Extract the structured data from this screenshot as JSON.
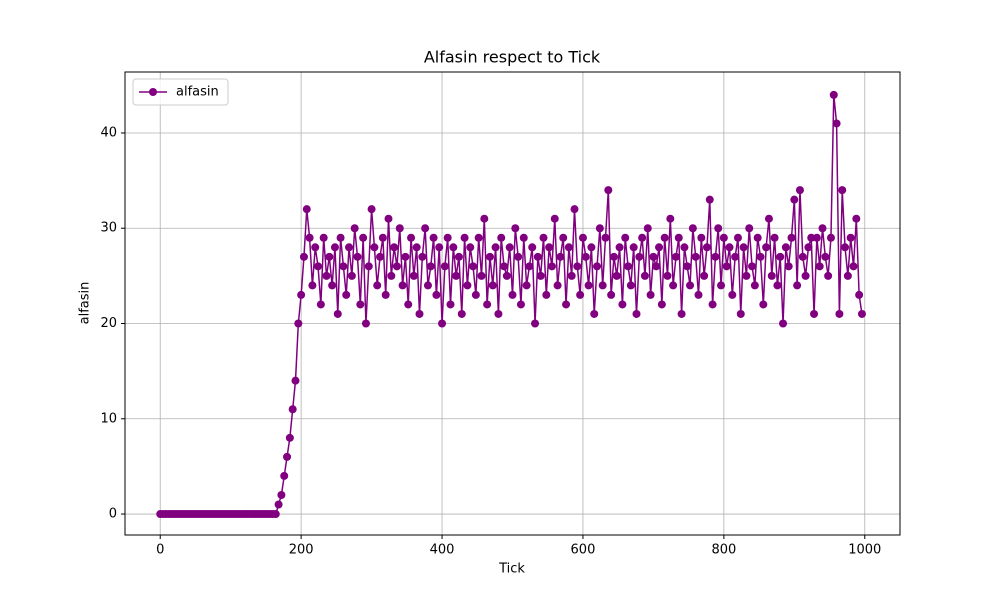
{
  "chart_data": {
    "type": "line",
    "title": "Alfasin respect to Tick",
    "x_label": "Tick",
    "y_label": "alfasin",
    "x": [
      0,
      4,
      8,
      12,
      16,
      20,
      24,
      28,
      32,
      36,
      40,
      44,
      48,
      52,
      56,
      60,
      64,
      68,
      72,
      76,
      80,
      84,
      88,
      92,
      96,
      100,
      104,
      108,
      112,
      116,
      120,
      124,
      128,
      132,
      136,
      140,
      144,
      148,
      152,
      156,
      160,
      164,
      168,
      172,
      176,
      180,
      184,
      188,
      192,
      196,
      200,
      204,
      208,
      212,
      216,
      220,
      224,
      228,
      232,
      236,
      240,
      244,
      248,
      252,
      256,
      260,
      264,
      268,
      272,
      276,
      280,
      284,
      288,
      292,
      296,
      300,
      304,
      308,
      312,
      316,
      320,
      324,
      328,
      332,
      336,
      340,
      344,
      348,
      352,
      356,
      360,
      364,
      368,
      372,
      376,
      380,
      384,
      388,
      392,
      396,
      400,
      404,
      408,
      412,
      416,
      420,
      424,
      428,
      432,
      436,
      440,
      444,
      448,
      452,
      456,
      460,
      464,
      468,
      472,
      476,
      480,
      484,
      488,
      492,
      496,
      500,
      504,
      508,
      512,
      516,
      520,
      524,
      528,
      532,
      536,
      540,
      544,
      548,
      552,
      556,
      560,
      564,
      568,
      572,
      576,
      580,
      584,
      588,
      592,
      596,
      600,
      604,
      608,
      612,
      616,
      620,
      624,
      628,
      632,
      636,
      640,
      644,
      648,
      652,
      656,
      660,
      664,
      668,
      672,
      676,
      680,
      684,
      688,
      692,
      696,
      700,
      704,
      708,
      712,
      716,
      720,
      724,
      728,
      732,
      736,
      740,
      744,
      748,
      752,
      756,
      760,
      764,
      768,
      772,
      776,
      780,
      784,
      788,
      792,
      796,
      800,
      804,
      808,
      812,
      816,
      820,
      824,
      828,
      832,
      836,
      840,
      844,
      848,
      852,
      856,
      860,
      864,
      868,
      872,
      876,
      880,
      884,
      888,
      892,
      896,
      900,
      904,
      908,
      912,
      916,
      920,
      924,
      928,
      932,
      936,
      940,
      944,
      948,
      952,
      956,
      960,
      964,
      968,
      972,
      976,
      980,
      984,
      988,
      992,
      996
    ],
    "series": [
      {
        "name": "alfasin",
        "color": "#800080",
        "values": [
          0,
          0,
          0,
          0,
          0,
          0,
          0,
          0,
          0,
          0,
          0,
          0,
          0,
          0,
          0,
          0,
          0,
          0,
          0,
          0,
          0,
          0,
          0,
          0,
          0,
          0,
          0,
          0,
          0,
          0,
          0,
          0,
          0,
          0,
          0,
          0,
          0,
          0,
          0,
          0,
          0,
          0,
          1,
          2,
          4,
          6,
          8,
          11,
          14,
          20,
          23,
          27,
          32,
          29,
          24,
          28,
          26,
          22,
          29,
          25,
          27,
          24,
          28,
          21,
          29,
          26,
          23,
          28,
          25,
          30,
          27,
          22,
          29,
          20,
          26,
          32,
          28,
          24,
          27,
          29,
          23,
          31,
          25,
          28,
          26,
          30,
          24,
          27,
          22,
          29,
          25,
          28,
          21,
          27,
          30,
          24,
          26,
          29,
          23,
          28,
          20,
          26,
          29,
          22,
          28,
          25,
          27,
          21,
          29,
          24,
          28,
          26,
          23,
          29,
          25,
          31,
          22,
          27,
          24,
          28,
          21,
          29,
          26,
          25,
          28,
          23,
          30,
          27,
          22,
          29,
          24,
          26,
          28,
          20,
          27,
          25,
          29,
          23,
          28,
          26,
          31,
          24,
          27,
          29,
          22,
          28,
          25,
          32,
          26,
          23,
          29,
          27,
          24,
          28,
          21,
          26,
          30,
          24,
          29,
          34,
          23,
          27,
          25,
          28,
          22,
          29,
          26,
          24,
          28,
          21,
          27,
          29,
          25,
          30,
          23,
          27,
          26,
          28,
          22,
          29,
          25,
          31,
          24,
          27,
          29,
          21,
          28,
          26,
          24,
          30,
          27,
          23,
          29,
          25,
          28,
          33,
          22,
          27,
          30,
          24,
          29,
          26,
          28,
          23,
          27,
          29,
          21,
          28,
          25,
          30,
          26,
          24,
          29,
          27,
          22,
          28,
          31,
          25,
          29,
          24,
          27,
          20,
          28,
          26,
          29,
          33,
          24,
          34,
          27,
          25,
          28,
          29,
          21,
          29,
          26,
          30,
          27,
          25,
          29,
          44,
          41,
          21,
          34,
          28,
          25,
          29,
          26,
          31,
          23,
          21
        ]
      }
    ],
    "xlim": [
      -50,
      1050
    ],
    "ylim": [
      -2.2,
      46.4
    ],
    "xticks": [
      0,
      200,
      400,
      600,
      800,
      1000
    ],
    "yticks": [
      0,
      10,
      20,
      30,
      40
    ],
    "grid": true,
    "legend": "upper left"
  }
}
